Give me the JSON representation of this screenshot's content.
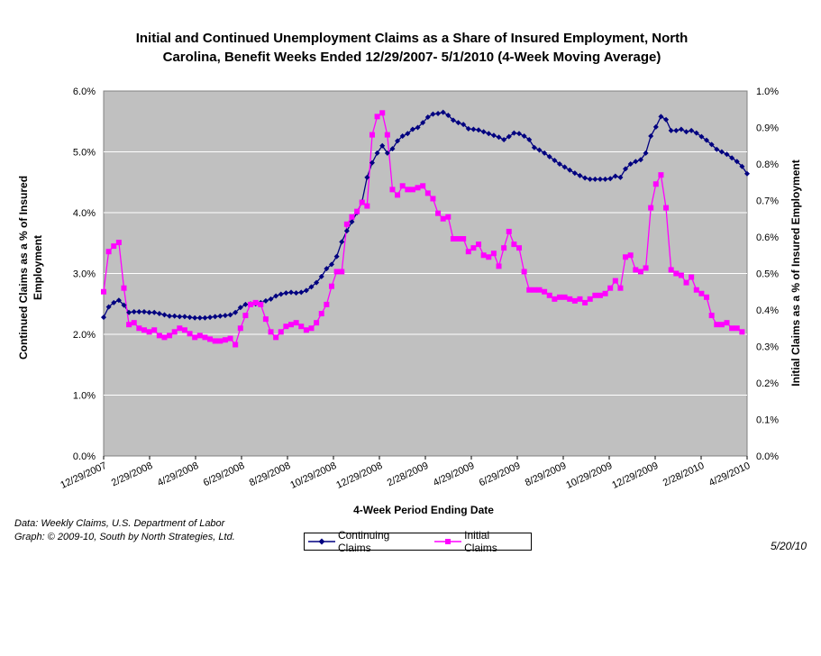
{
  "chart_data": {
    "type": "line",
    "title_line1": "Initial and Continued Unemployment Claims as a Share of Insured Employment, North",
    "title_line2": "Carolina, Benefit Weeks Ended 12/29/2007- 5/1/2010 (4-Week Moving Average)",
    "xlabel": "4-Week Period Ending Date",
    "ylabel_left_line1": "Continued Claims as a % of Insured",
    "ylabel_left_line2": "Employment",
    "ylabel_right": "Initial Claims as a % of Insured Employment",
    "y_left_ticks": [
      "0.0%",
      "1.0%",
      "2.0%",
      "3.0%",
      "4.0%",
      "5.0%",
      "6.0%"
    ],
    "y_right_ticks": [
      "0.0%",
      "0.1%",
      "0.2%",
      "0.3%",
      "0.4%",
      "0.5%",
      "0.6%",
      "0.7%",
      "0.8%",
      "0.9%",
      "1.0%"
    ],
    "x_ticks": [
      "12/29/2007",
      "2/29/2008",
      "4/29/2008",
      "6/29/2008",
      "8/29/2008",
      "10/29/2008",
      "12/29/2008",
      "2/28/2009",
      "4/29/2009",
      "6/29/2009",
      "8/29/2009",
      "10/29/2009",
      "12/29/2009",
      "2/28/2010",
      "4/29/2010"
    ],
    "ylim_left": [
      0,
      6
    ],
    "ylim_right": [
      0,
      1
    ],
    "grid": true,
    "legend_position": "bottom",
    "plot_background": "#c0c0c0",
    "series": [
      {
        "name": "Continuing Claims",
        "axis": "left",
        "color": "#000080",
        "marker": "diamond",
        "values": [
          2.28,
          2.45,
          2.52,
          2.56,
          2.48,
          2.36,
          2.37,
          2.37,
          2.37,
          2.36,
          2.36,
          2.34,
          2.32,
          2.3,
          2.3,
          2.29,
          2.29,
          2.28,
          2.27,
          2.27,
          2.27,
          2.28,
          2.29,
          2.3,
          2.31,
          2.32,
          2.36,
          2.44,
          2.49,
          2.5,
          2.5,
          2.52,
          2.55,
          2.58,
          2.63,
          2.66,
          2.68,
          2.69,
          2.68,
          2.69,
          2.72,
          2.78,
          2.85,
          2.95,
          3.08,
          3.15,
          3.28,
          3.52,
          3.7,
          3.85,
          4.0,
          4.18,
          4.58,
          4.82,
          4.98,
          5.1,
          4.98,
          5.05,
          5.18,
          5.26,
          5.3,
          5.37,
          5.4,
          5.48,
          5.57,
          5.62,
          5.63,
          5.65,
          5.6,
          5.52,
          5.48,
          5.45,
          5.38,
          5.37,
          5.36,
          5.33,
          5.3,
          5.27,
          5.24,
          5.2,
          5.25,
          5.31,
          5.3,
          5.26,
          5.2,
          5.07,
          5.03,
          4.98,
          4.92,
          4.86,
          4.8,
          4.75,
          4.7,
          4.65,
          4.61,
          4.57,
          4.55,
          4.55,
          4.55,
          4.55,
          4.56,
          4.6,
          4.58,
          4.72,
          4.8,
          4.84,
          4.87,
          4.98,
          5.26,
          5.41,
          5.58,
          5.53,
          5.35,
          5.35,
          5.37,
          5.33,
          5.35,
          5.31,
          5.25,
          5.19,
          5.12,
          5.04,
          5.0,
          4.96,
          4.9,
          4.84,
          4.76,
          4.64
        ]
      },
      {
        "name": "Initial Claims",
        "axis": "right",
        "color": "#ff00ff",
        "marker": "square",
        "values": [
          0.45,
          0.56,
          0.575,
          0.585,
          0.46,
          0.36,
          0.365,
          0.35,
          0.345,
          0.34,
          0.345,
          0.33,
          0.325,
          0.33,
          0.34,
          0.35,
          0.345,
          0.335,
          0.325,
          0.33,
          0.325,
          0.32,
          0.315,
          0.315,
          0.318,
          0.322,
          0.305,
          0.35,
          0.385,
          0.415,
          0.42,
          0.415,
          0.375,
          0.34,
          0.325,
          0.34,
          0.355,
          0.36,
          0.365,
          0.355,
          0.345,
          0.35,
          0.365,
          0.39,
          0.415,
          0.465,
          0.505,
          0.505,
          0.635,
          0.655,
          0.67,
          0.695,
          0.685,
          0.88,
          0.93,
          0.94,
          0.88,
          0.73,
          0.715,
          0.74,
          0.73,
          0.73,
          0.735,
          0.74,
          0.72,
          0.705,
          0.665,
          0.65,
          0.655,
          0.595,
          0.595,
          0.595,
          0.56,
          0.57,
          0.58,
          0.55,
          0.545,
          0.555,
          0.52,
          0.57,
          0.615,
          0.58,
          0.57,
          0.505,
          0.455,
          0.455,
          0.455,
          0.45,
          0.44,
          0.43,
          0.435,
          0.435,
          0.43,
          0.425,
          0.43,
          0.42,
          0.43,
          0.44,
          0.44,
          0.445,
          0.46,
          0.48,
          0.46,
          0.545,
          0.55,
          0.51,
          0.505,
          0.515,
          0.68,
          0.745,
          0.77,
          0.68,
          0.51,
          0.5,
          0.495,
          0.475,
          0.49,
          0.455,
          0.445,
          0.435,
          0.385,
          0.36,
          0.36,
          0.365,
          0.35,
          0.35,
          0.34
        ]
      }
    ]
  },
  "notes": {
    "data_source": "Data:  Weekly Claims, U.S. Department of Labor",
    "graph_credit": "Graph: © 2009-10, South by North Strategies, Ltd.",
    "date": "5/20/10"
  }
}
